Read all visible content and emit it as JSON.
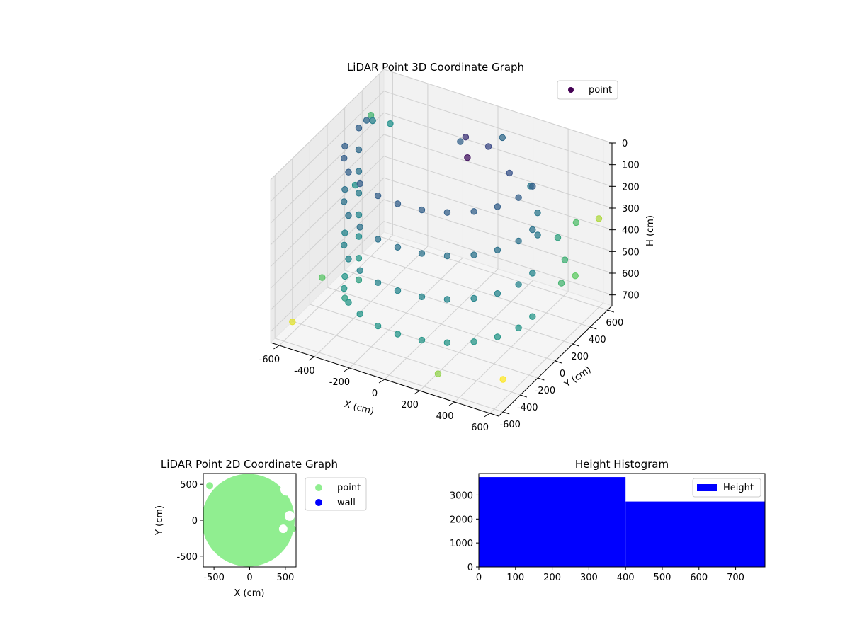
{
  "figure": {
    "background": "#ffffff"
  },
  "chart_data": [
    {
      "type": "scatter",
      "projection": "3d",
      "title": "LiDAR Point 3D Coordinate Graph",
      "xlabel": "X (cm)",
      "ylabel": "Y (cm)",
      "zlabel": "H (cm)",
      "xlim": [
        -650,
        650
      ],
      "ylim": [
        -650,
        650
      ],
      "zlim": [
        750,
        0
      ],
      "z_inverted": true,
      "xticks": [
        -600,
        -400,
        -200,
        0,
        200,
        400,
        600
      ],
      "yticks": [
        -600,
        -400,
        -200,
        0,
        200,
        400,
        600
      ],
      "zticks": [
        0,
        100,
        200,
        300,
        400,
        500,
        600,
        700
      ],
      "grid": true,
      "legend": {
        "placement": "top-right",
        "entries": [
          {
            "label": "point",
            "color": "#440154"
          }
        ]
      },
      "colormap": "viridis",
      "color_encodes": "distance from center",
      "series": [
        {
          "name": "point",
          "shape": "circular wall, radius ~500 cm (arc from ~130° to ~370°), heights 0–700 cm",
          "points": [
            [
              -500,
              60,
              0
            ],
            [
              -500,
              60,
              100
            ],
            [
              -500,
              60,
              200
            ],
            [
              -500,
              60,
              300
            ],
            [
              -500,
              60,
              400
            ],
            [
              -500,
              60,
              500
            ],
            [
              -500,
              60,
              600
            ],
            [
              -500,
              60,
              700
            ],
            [
              -480,
              -140,
              0
            ],
            [
              -480,
              -140,
              200
            ],
            [
              -480,
              -140,
              400
            ],
            [
              -480,
              -140,
              600
            ],
            [
              -480,
              -140,
              700
            ],
            [
              -430,
              -250,
              0
            ],
            [
              -430,
              -250,
              200
            ],
            [
              -430,
              -250,
              400
            ],
            [
              -430,
              -250,
              600
            ],
            [
              -350,
              -360,
              0
            ],
            [
              -350,
              -360,
              200
            ],
            [
              -350,
              -360,
              400
            ],
            [
              -350,
              -360,
              600
            ],
            [
              -250,
              -430,
              0
            ],
            [
              -250,
              -430,
              200
            ],
            [
              -250,
              -430,
              400
            ],
            [
              -250,
              -430,
              600
            ],
            [
              -120,
              -485,
              0
            ],
            [
              -120,
              -485,
              200
            ],
            [
              -120,
              -485,
              400
            ],
            [
              -120,
              -485,
              600
            ],
            [
              0,
              -500,
              0
            ],
            [
              0,
              -500,
              200
            ],
            [
              0,
              -500,
              400
            ],
            [
              0,
              -500,
              600
            ],
            [
              130,
              -485,
              0
            ],
            [
              130,
              -485,
              200
            ],
            [
              130,
              -485,
              400
            ],
            [
              130,
              -485,
              600
            ],
            [
              250,
              -435,
              0
            ],
            [
              250,
              -435,
              200
            ],
            [
              250,
              -435,
              400
            ],
            [
              250,
              -435,
              600
            ],
            [
              360,
              -350,
              0
            ],
            [
              360,
              -350,
              200
            ],
            [
              360,
              -350,
              400
            ],
            [
              360,
              -350,
              600
            ],
            [
              440,
              -240,
              0
            ],
            [
              440,
              -240,
              200
            ],
            [
              440,
              -240,
              400
            ],
            [
              440,
              -240,
              600
            ],
            [
              490,
              -100,
              0
            ],
            [
              490,
              -100,
              200
            ],
            [
              490,
              -100,
              400
            ],
            [
              490,
              -100,
              600
            ],
            [
              500,
              40,
              0
            ],
            [
              500,
              40,
              200
            ],
            [
              500,
              40,
              400
            ],
            [
              500,
              40,
              600
            ],
            [
              -500,
              150,
              0
            ],
            [
              -520,
              260,
              50
            ],
            [
              -480,
              380,
              100
            ],
            [
              0,
              300,
              100
            ],
            [
              -50,
              380,
              50
            ],
            [
              60,
              420,
              80
            ],
            [
              -120,
              460,
              120
            ],
            [
              100,
              500,
              60
            ],
            [
              200,
              380,
              150
            ],
            [
              300,
              420,
              200
            ],
            [
              400,
              300,
              250
            ],
            [
              450,
              200,
              300
            ],
            [
              500,
              330,
              350
            ],
            [
              560,
              420,
              300
            ],
            [
              580,
              250,
              400
            ],
            [
              600,
              330,
              500
            ],
            [
              620,
              130,
              450
            ],
            [
              -620,
              -120,
              650
            ],
            [
              -600,
              -500,
              700
            ],
            [
              -550,
              120,
              300
            ],
            [
              -600,
              400,
              100
            ],
            [
              640,
              520,
              300
            ],
            [
              650,
              -600,
              600
            ],
            [
              300,
              -640,
              650
            ]
          ]
        }
      ]
    },
    {
      "type": "scatter",
      "title": "LiDAR Point 2D Coordinate Graph",
      "xlabel": "X (cm)",
      "ylabel": "Y (cm)",
      "xlim": [
        -650,
        650
      ],
      "ylim": [
        -650,
        650
      ],
      "xticks": [
        -500,
        0,
        500
      ],
      "yticks": [
        -500,
        0,
        500
      ],
      "legend": {
        "placement": "outside-right",
        "entries": [
          {
            "label": "point",
            "color": "#90ee90"
          },
          {
            "label": "wall",
            "color": "#0000ff"
          }
        ]
      },
      "series": [
        {
          "name": "point",
          "color": "#90ee90",
          "shape": "filled disc, radius ~650 cm, centred at origin"
        },
        {
          "name": "wall",
          "color": "#0000ff",
          "points": []
        }
      ]
    },
    {
      "type": "bar",
      "subtype": "histogram",
      "title": "Height Histogram",
      "xlim": [
        0,
        780
      ],
      "ylim": [
        0,
        3900
      ],
      "xticks": [
        0,
        100,
        200,
        300,
        400,
        500,
        600,
        700
      ],
      "yticks": [
        0,
        1000,
        2000,
        3000
      ],
      "color": "#0000ff",
      "legend": {
        "placement": "top-right",
        "entries": [
          {
            "label": "Height",
            "color": "#0000ff"
          }
        ]
      },
      "bins": [
        {
          "start": 0,
          "end": 400,
          "count": 3750
        },
        {
          "start": 400,
          "end": 780,
          "count": 2730
        }
      ]
    }
  ]
}
